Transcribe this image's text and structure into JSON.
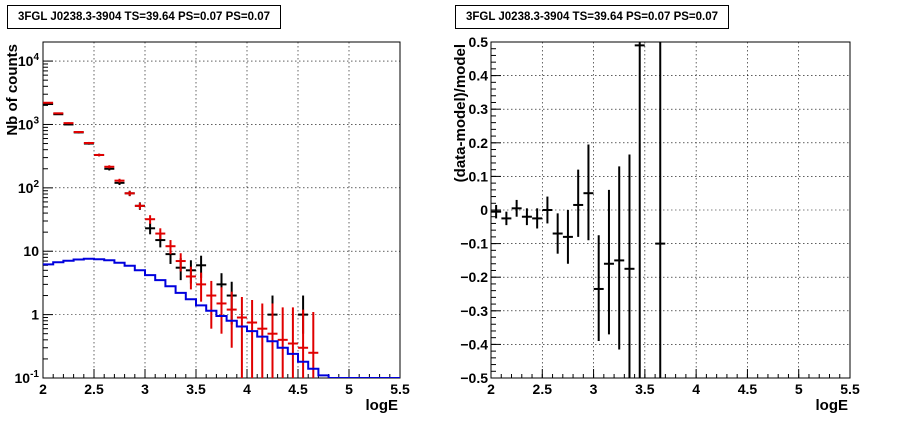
{
  "chart_data": [
    {
      "type": "scatter",
      "title": "3FGL J0238.3-3904 TS=39.64 PS=0.07 PS=0.07",
      "xlabel": "logE",
      "ylabel": "Nb of counts",
      "xlim": [
        2,
        5.5
      ],
      "ylim": [
        0.1,
        20000
      ],
      "yscale": "log",
      "grid": true,
      "x_ticks": [
        "2",
        "2.5",
        "3",
        "3.5",
        "4",
        "4.5",
        "5",
        "5.5"
      ],
      "y_ticks": [
        {
          "value": 0.1,
          "label": "10",
          "exp": "-1"
        },
        {
          "value": 1,
          "label": "1",
          "exp": ""
        },
        {
          "value": 10,
          "label": "10",
          "exp": ""
        },
        {
          "value": 100,
          "label": "10",
          "exp": "2"
        },
        {
          "value": 1000,
          "label": "10",
          "exp": "3"
        },
        {
          "value": 10000,
          "label": "10",
          "exp": "4"
        }
      ],
      "series": [
        {
          "color": "#000000",
          "style": "errorbar",
          "points": [
            {
              "x": 2.05,
              "y": 2100,
              "lo": 2050,
              "hi": 2150
            },
            {
              "x": 2.15,
              "y": 1450,
              "lo": 1410,
              "hi": 1490
            },
            {
              "x": 2.25,
              "y": 1000,
              "lo": 970,
              "hi": 1030
            },
            {
              "x": 2.35,
              "y": 750,
              "lo": 725,
              "hi": 775
            },
            {
              "x": 2.45,
              "y": 500,
              "lo": 480,
              "hi": 520
            },
            {
              "x": 2.55,
              "y": 330,
              "lo": 315,
              "hi": 345
            },
            {
              "x": 2.65,
              "y": 200,
              "lo": 188,
              "hi": 212
            },
            {
              "x": 2.75,
              "y": 120,
              "lo": 111,
              "hi": 129
            },
            {
              "x": 2.85,
              "y": 82,
              "lo": 74,
              "hi": 90
            },
            {
              "x": 2.95,
              "y": 52,
              "lo": 45,
              "hi": 59
            },
            {
              "x": 3.05,
              "y": 23,
              "lo": 18.5,
              "hi": 28
            },
            {
              "x": 3.15,
              "y": 15,
              "lo": 11.5,
              "hi": 19
            },
            {
              "x": 3.25,
              "y": 9,
              "lo": 6.3,
              "hi": 12
            },
            {
              "x": 3.35,
              "y": 5.5,
              "lo": 3.5,
              "hi": 7.8
            },
            {
              "x": 3.45,
              "y": 5,
              "lo": 3.1,
              "hi": 7.2
            },
            {
              "x": 3.55,
              "y": 6,
              "lo": 3.8,
              "hi": 8.5
            },
            {
              "x": 3.65,
              "y": 0,
              "lo": 0,
              "hi": 0
            },
            {
              "x": 3.75,
              "y": 3,
              "lo": 1.5,
              "hi": 4.5
            },
            {
              "x": 3.85,
              "y": 2,
              "lo": 0.7,
              "hi": 3.3
            },
            {
              "x": 4.25,
              "y": 1,
              "lo": 0.5,
              "hi": 2.0
            },
            {
              "x": 4.55,
              "y": 1,
              "lo": 0.5,
              "hi": 2.0
            }
          ]
        },
        {
          "color": "#e00000",
          "style": "errorbar",
          "points": [
            {
              "x": 2.05,
              "y": 2200,
              "lo": 2150,
              "hi": 2250
            },
            {
              "x": 2.15,
              "y": 1500,
              "lo": 1460,
              "hi": 1540
            },
            {
              "x": 2.25,
              "y": 1050,
              "lo": 1020,
              "hi": 1080
            },
            {
              "x": 2.35,
              "y": 760,
              "lo": 735,
              "hi": 785
            },
            {
              "x": 2.45,
              "y": 510,
              "lo": 490,
              "hi": 530
            },
            {
              "x": 2.55,
              "y": 330,
              "lo": 315,
              "hi": 345
            },
            {
              "x": 2.65,
              "y": 215,
              "lo": 203,
              "hi": 227
            },
            {
              "x": 2.75,
              "y": 130,
              "lo": 121,
              "hi": 139
            },
            {
              "x": 2.85,
              "y": 82,
              "lo": 75,
              "hi": 89
            },
            {
              "x": 2.95,
              "y": 52,
              "lo": 46,
              "hi": 58
            },
            {
              "x": 3.05,
              "y": 32,
              "lo": 27,
              "hi": 37
            },
            {
              "x": 3.15,
              "y": 19,
              "lo": 15.5,
              "hi": 23
            },
            {
              "x": 3.25,
              "y": 12,
              "lo": 9,
              "hi": 15
            },
            {
              "x": 3.35,
              "y": 7,
              "lo": 4.8,
              "hi": 9.3
            },
            {
              "x": 3.45,
              "y": 4,
              "lo": 2.5,
              "hi": 5.7
            },
            {
              "x": 3.55,
              "y": 3,
              "lo": 1.6,
              "hi": 4.6
            },
            {
              "x": 3.65,
              "y": 2,
              "lo": 0.6,
              "hi": 3.4
            },
            {
              "x": 3.75,
              "y": 1.5,
              "lo": 0.5,
              "hi": 2.7
            },
            {
              "x": 3.85,
              "y": 1.2,
              "lo": 0.3,
              "hi": 2.3
            },
            {
              "x": 3.95,
              "y": 0.9,
              "lo": 0.1,
              "hi": 1.9
            },
            {
              "x": 4.05,
              "y": 0.75,
              "lo": 0.1,
              "hi": 1.7
            },
            {
              "x": 4.15,
              "y": 0.6,
              "lo": 0.1,
              "hi": 1.5
            },
            {
              "x": 4.25,
              "y": 0.5,
              "lo": 0.1,
              "hi": 1.5
            },
            {
              "x": 4.35,
              "y": 0.4,
              "lo": 0.1,
              "hi": 1.3
            },
            {
              "x": 4.45,
              "y": 0.35,
              "lo": 0.1,
              "hi": 1.3
            },
            {
              "x": 4.55,
              "y": 0.3,
              "lo": 0.1,
              "hi": 1.2
            },
            {
              "x": 4.65,
              "y": 0.25,
              "lo": 0.1,
              "hi": 1.1
            }
          ]
        },
        {
          "color": "#0000dd",
          "style": "step",
          "bin_width": 0.1,
          "x": [
            2.0,
            2.1,
            2.2,
            2.3,
            2.4,
            2.5,
            2.6,
            2.7,
            2.8,
            2.9,
            3.0,
            3.1,
            3.2,
            3.3,
            3.4,
            3.5,
            3.6,
            3.7,
            3.8,
            3.9,
            4.0,
            4.1,
            4.2,
            4.3,
            4.4,
            4.5,
            4.6,
            4.7,
            4.8,
            4.9,
            5.0,
            5.1,
            5.2,
            5.3,
            5.4
          ],
          "values": [
            6.2,
            6.7,
            7.1,
            7.4,
            7.6,
            7.5,
            7.2,
            6.6,
            5.9,
            5.0,
            4.2,
            3.5,
            2.8,
            2.2,
            1.75,
            1.4,
            1.15,
            0.95,
            0.8,
            0.65,
            0.55,
            0.45,
            0.38,
            0.3,
            0.24,
            0.18,
            0.14,
            0.11,
            0.1,
            0.1,
            0.1,
            0.1,
            0.1,
            0.1,
            0.1
          ]
        }
      ]
    },
    {
      "type": "scatter",
      "title": "3FGL J0238.3-3904 TS=39.64 PS=0.07 PS=0.07",
      "xlabel": "logE",
      "ylabel": "(data-model)/model",
      "xlim": [
        2,
        5.5
      ],
      "ylim": [
        -0.5,
        0.5
      ],
      "grid": true,
      "x_ticks": [
        "2",
        "2.5",
        "3",
        "3.5",
        "4",
        "4.5",
        "5",
        "5.5"
      ],
      "y_ticks": [
        "-0.5",
        "-0.4",
        "-0.3",
        "-0.2",
        "-0.1",
        "0",
        "0.1",
        "0.2",
        "0.3",
        "0.4",
        "0.5"
      ],
      "series": [
        {
          "color": "#000000",
          "style": "errorbar",
          "points": [
            {
              "x": 2.05,
              "y": -0.005,
              "lo": -0.025,
              "hi": 0.015
            },
            {
              "x": 2.15,
              "y": -0.025,
              "lo": -0.045,
              "hi": -0.005
            },
            {
              "x": 2.25,
              "y": 0.005,
              "lo": -0.02,
              "hi": 0.03
            },
            {
              "x": 2.35,
              "y": -0.02,
              "lo": -0.045,
              "hi": 0.005
            },
            {
              "x": 2.45,
              "y": -0.025,
              "lo": -0.055,
              "hi": 0.005
            },
            {
              "x": 2.55,
              "y": 0,
              "lo": -0.04,
              "hi": 0.04
            },
            {
              "x": 2.65,
              "y": -0.07,
              "lo": -0.13,
              "hi": -0.01
            },
            {
              "x": 2.75,
              "y": -0.08,
              "lo": -0.16,
              "hi": 0.0
            },
            {
              "x": 2.85,
              "y": 0.015,
              "lo": -0.08,
              "hi": 0.12
            },
            {
              "x": 2.95,
              "y": 0.05,
              "lo": -0.09,
              "hi": 0.195
            },
            {
              "x": 3.05,
              "y": -0.235,
              "lo": -0.39,
              "hi": -0.075
            },
            {
              "x": 3.15,
              "y": -0.16,
              "lo": -0.37,
              "hi": 0.06
            },
            {
              "x": 3.25,
              "y": -0.15,
              "lo": -0.415,
              "hi": 0.13
            },
            {
              "x": 3.35,
              "y": -0.175,
              "lo": -0.5,
              "hi": 0.165
            },
            {
              "x": 3.45,
              "y": 0.49,
              "lo": -0.5,
              "hi": 0.5
            },
            {
              "x": 3.65,
              "y": -0.1,
              "lo": -0.5,
              "hi": 0.5
            }
          ]
        }
      ]
    }
  ]
}
